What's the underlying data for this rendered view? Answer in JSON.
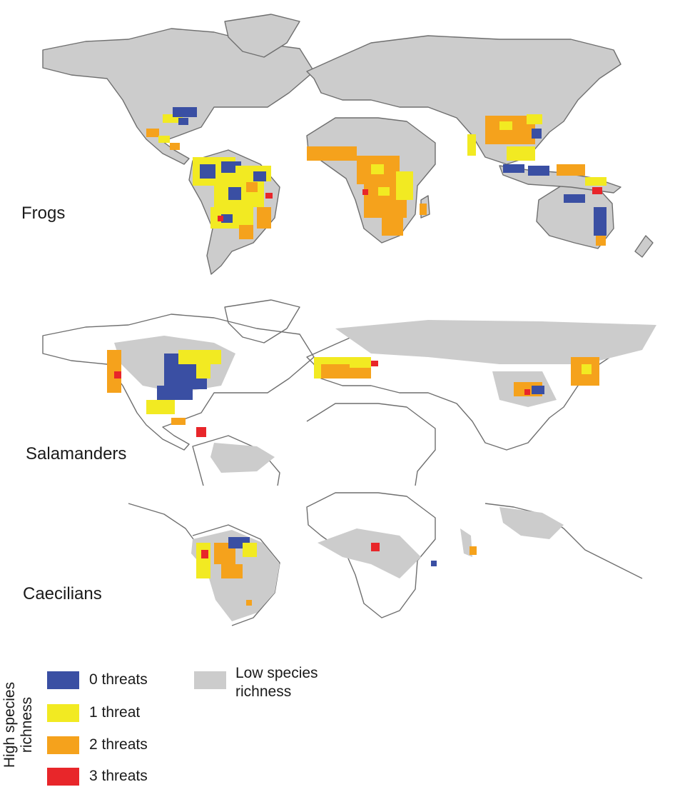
{
  "panels": {
    "frogs": "Frogs",
    "salamanders": "Salamanders",
    "caecilians": "Caecilians"
  },
  "legend": {
    "axis_title": "High species richness",
    "items": [
      {
        "label": "0 threats",
        "color": "#3a4fa3"
      },
      {
        "label": "1 threat",
        "color": "#f2ea22"
      },
      {
        "label": "2 threats",
        "color": "#f5a21c"
      },
      {
        "label": "3 threats",
        "color": "#e8262a"
      }
    ],
    "low": {
      "label": "Low species richness",
      "color": "#cccccc"
    }
  },
  "colors": {
    "land": "#cccccc",
    "coast": "#6f6f6f",
    "none": "#3a4fa3",
    "one": "#f2ea22",
    "two": "#f5a21c",
    "three": "#e8262a"
  }
}
